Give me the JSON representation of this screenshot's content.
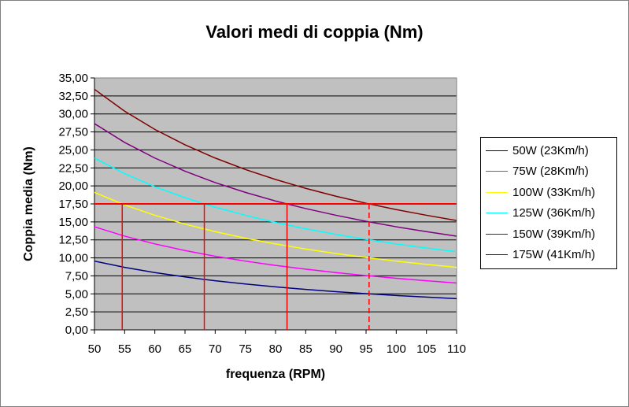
{
  "chart_data": {
    "type": "line",
    "title": "Valori medi di coppia (Nm)",
    "xlabel": "frequenza (RPM)",
    "ylabel": "Coppia media (Nm)",
    "xlim": [
      50,
      110
    ],
    "ylim": [
      0,
      35
    ],
    "x_ticks": [
      "50",
      "55",
      "60",
      "65",
      "70",
      "75",
      "80",
      "85",
      "90",
      "95",
      "100",
      "105",
      "110"
    ],
    "y_ticks": [
      "0,00",
      "2,50",
      "5,00",
      "7,50",
      "10,00",
      "12,50",
      "15,00",
      "17,50",
      "20,00",
      "22,50",
      "25,00",
      "27,50",
      "30,00",
      "32,50",
      "35,00"
    ],
    "grid": "horizontal",
    "legend_position": "right",
    "plot_background": "#c0c0c0",
    "x": [
      50,
      55,
      60,
      65,
      70,
      75,
      80,
      85,
      90,
      95,
      100,
      105,
      110
    ],
    "series": [
      {
        "name": "50W (23Km/h)",
        "color": "#000080",
        "values": [
          9.55,
          8.68,
          7.96,
          7.35,
          6.82,
          6.37,
          5.97,
          5.62,
          5.31,
          5.03,
          4.77,
          4.55,
          4.34
        ]
      },
      {
        "name": "75W (28Km/h)",
        "color": "#ff00ff",
        "values": [
          14.32,
          13.02,
          11.94,
          11.02,
          10.23,
          9.55,
          8.95,
          8.43,
          7.96,
          7.54,
          7.16,
          6.82,
          6.51
        ]
      },
      {
        "name": "100W (33Km/h)",
        "color": "#ffff00",
        "values": [
          19.1,
          17.36,
          15.92,
          14.69,
          13.64,
          12.73,
          11.94,
          11.23,
          10.61,
          10.05,
          9.55,
          9.09,
          8.68
        ]
      },
      {
        "name": "125W (36Km/h)",
        "color": "#00ffff",
        "values": [
          23.87,
          21.7,
          19.89,
          18.36,
          17.05,
          15.92,
          14.92,
          14.04,
          13.26,
          12.56,
          11.94,
          11.37,
          10.85
        ]
      },
      {
        "name": "150W (39Km/h)",
        "color": "#800080",
        "values": [
          28.65,
          26.04,
          23.87,
          22.04,
          20.46,
          19.1,
          17.9,
          16.85,
          15.92,
          15.08,
          14.32,
          13.64,
          13.02
        ]
      },
      {
        "name": "175W (41Km/h)",
        "color": "#800000",
        "values": [
          33.42,
          30.38,
          27.85,
          25.71,
          23.87,
          22.28,
          20.89,
          19.66,
          18.57,
          17.59,
          16.71,
          15.92,
          15.19
        ]
      }
    ],
    "annotations": {
      "color": "#ff0000",
      "hline_y": 17.5,
      "vlines": [
        {
          "x": 54.6,
          "style": "solid"
        },
        {
          "x": 68.2,
          "style": "solid"
        },
        {
          "x": 81.9,
          "style": "solid"
        },
        {
          "x": 95.5,
          "style": "dashed"
        }
      ]
    }
  }
}
